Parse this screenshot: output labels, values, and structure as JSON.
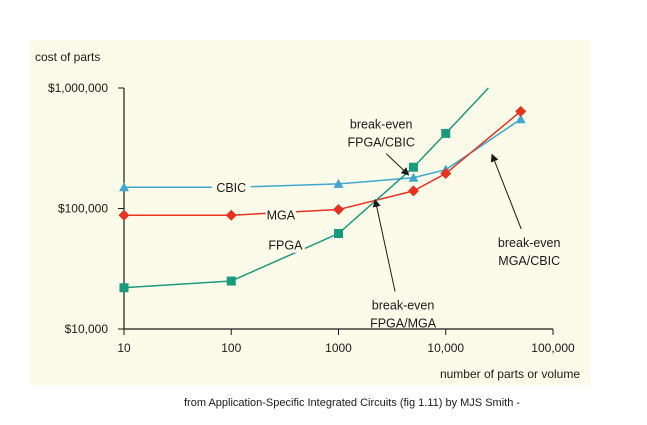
{
  "caption": "from Application-Specific Integrated Circuits (fig 1.11) by MJS Smith -",
  "chart_data": {
    "type": "line",
    "title": "",
    "xlabel": "number of parts or volume",
    "ylabel": "cost of parts",
    "x_scale": "log",
    "y_scale": "log",
    "xlim": [
      10,
      100000
    ],
    "ylim": [
      10000,
      1000000
    ],
    "x_ticks": [
      {
        "value": 10,
        "label": "10"
      },
      {
        "value": 100,
        "label": "100"
      },
      {
        "value": 1000,
        "label": "1000"
      },
      {
        "value": 10000,
        "label": "10,000"
      },
      {
        "value": 100000,
        "label": "100,000"
      }
    ],
    "y_ticks": [
      {
        "value": 10000,
        "label": "$10,000"
      },
      {
        "value": 100000,
        "label": "$100,000"
      },
      {
        "value": 1000000,
        "label": "$1,000,000"
      }
    ],
    "grid": false,
    "series": [
      {
        "name": "CBIC",
        "color": "#3fa7cf",
        "marker": "triangle",
        "points": [
          [
            10,
            150000
          ],
          [
            100,
            150000
          ],
          [
            1000,
            160000
          ],
          [
            5000,
            180000
          ],
          [
            10000,
            210000
          ],
          [
            50000,
            550000
          ]
        ],
        "label_at": [
          100,
          150000
        ]
      },
      {
        "name": "MGA",
        "color": "#e8321e",
        "marker": "diamond",
        "points": [
          [
            10,
            88000
          ],
          [
            100,
            88000
          ],
          [
            1000,
            98000
          ],
          [
            5000,
            140000
          ],
          [
            10000,
            195000
          ],
          [
            50000,
            640000
          ]
        ],
        "label_at": [
          290,
          88000
        ]
      },
      {
        "name": "FPGA",
        "color": "#1a9a7c",
        "marker": "square",
        "points": [
          [
            10,
            22000
          ],
          [
            100,
            25000
          ],
          [
            1000,
            62000
          ],
          [
            5000,
            220000
          ],
          [
            10000,
            420000
          ],
          [
            25000,
            1000000
          ]
        ],
        "marker_count": 5,
        "label_at": [
          320,
          50000
        ]
      }
    ],
    "annotations": [
      {
        "lines": [
          "break-even",
          "FPGA/CBIC"
        ],
        "text_at": [
          2500,
          460000
        ],
        "arrow_to": [
          4500,
          190000
        ]
      },
      {
        "lines": [
          "break-even",
          "FPGA/MGA"
        ],
        "text_at": [
          4000,
          14500
        ],
        "arrow_to": [
          2200,
          118000
        ]
      },
      {
        "lines": [
          "break-even",
          "MGA/CBIC"
        ],
        "text_at": [
          60000,
          48000
        ],
        "arrow_to": [
          27000,
          280000
        ]
      }
    ]
  }
}
